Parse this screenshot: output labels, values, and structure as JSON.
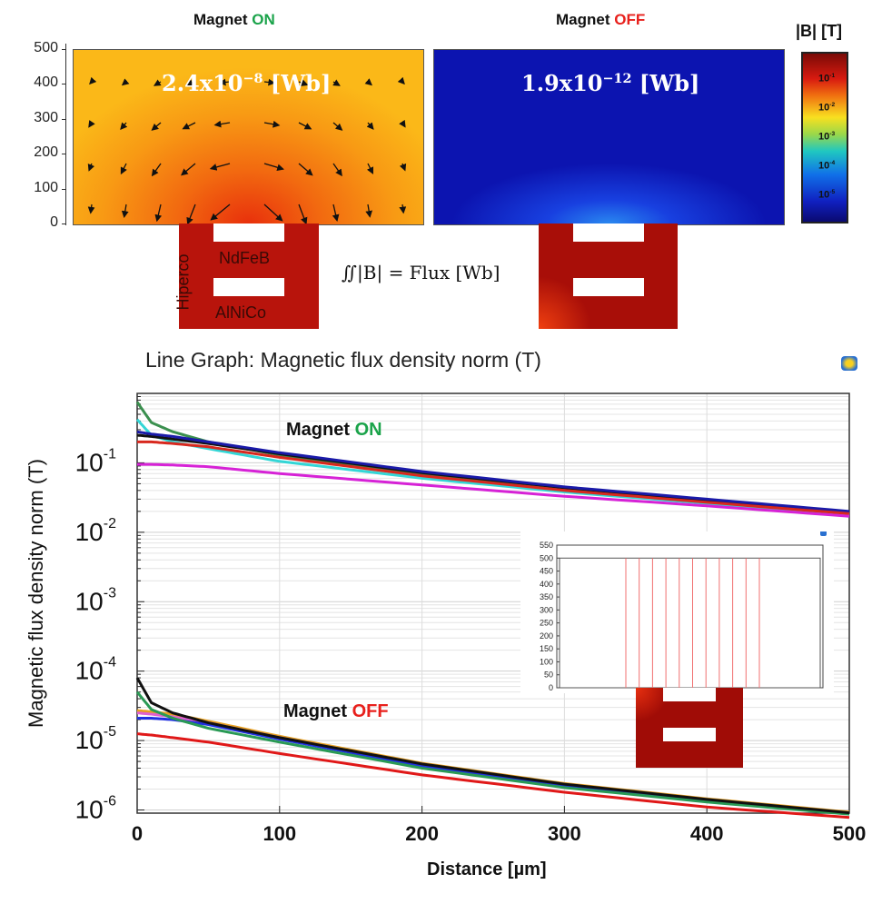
{
  "top_panels": {
    "on": {
      "title_prefix": "Magnet ",
      "title_state": "ON",
      "flux_value": "2.4x10",
      "flux_exp": "−8",
      "flux_unit": " [Wb]"
    },
    "off": {
      "title_prefix": "Magnet ",
      "title_state": "OFF",
      "flux_value": "1.9x10",
      "flux_exp": "−12",
      "flux_unit": " [Wb]"
    },
    "y_ticks": [
      "500",
      "400",
      "300",
      "200",
      "100",
      "0"
    ],
    "colorbar": {
      "title": "|B| [T]",
      "ticks": [
        "10-1",
        "10-2",
        "10-3",
        "10-4",
        "10-5"
      ],
      "tick_base": "10",
      "tick_exps": [
        "-1",
        "-2",
        "-3",
        "-4",
        "-5"
      ]
    },
    "device_labels": {
      "hiperco": "Hiperco",
      "ndfeb": "NdFeB",
      "alnico": "AlNiCo"
    },
    "formula": "∬|B| = Flux [Wb]",
    "colors": {
      "on": "#1aa34a",
      "off": "#e8201c"
    }
  },
  "chart_data": {
    "type": "line",
    "title": "Line Graph: Magnetic flux density norm (T)",
    "xlabel": "Distance [µm]",
    "ylabel": "Magnetic flux density norm (T)",
    "xlim": [
      0,
      500
    ],
    "ylim": [
      9e-07,
      1
    ],
    "yscale": "log",
    "grid": true,
    "x_ticks": [
      "0",
      "100",
      "200",
      "300",
      "400",
      "500"
    ],
    "y_tick_base": "10",
    "y_tick_exps": [
      "-1",
      "-2",
      "-3",
      "-4",
      "-5",
      "-6"
    ],
    "annotations": {
      "on_prefix": "Magnet ",
      "on_state": "ON",
      "off_prefix": "Magnet ",
      "off_state": "OFF"
    },
    "x": [
      0,
      10,
      25,
      50,
      100,
      200,
      300,
      400,
      500
    ],
    "series": [
      {
        "group": "on",
        "color": "#3a8f4e",
        "values": [
          0.75,
          0.38,
          0.28,
          0.2,
          0.13,
          0.07,
          0.042,
          0.028,
          0.019
        ]
      },
      {
        "group": "on",
        "color": "#33d6d6",
        "values": [
          0.42,
          0.25,
          0.2,
          0.16,
          0.105,
          0.06,
          0.038,
          0.026,
          0.018
        ]
      },
      {
        "group": "on",
        "color": "#111111",
        "values": [
          0.25,
          0.24,
          0.22,
          0.19,
          0.135,
          0.072,
          0.044,
          0.029,
          0.0195
        ]
      },
      {
        "group": "on",
        "color": "#1a1aa8",
        "values": [
          0.28,
          0.26,
          0.24,
          0.2,
          0.14,
          0.075,
          0.045,
          0.03,
          0.02
        ]
      },
      {
        "group": "on",
        "color": "#d8281e",
        "values": [
          0.2,
          0.2,
          0.19,
          0.17,
          0.12,
          0.065,
          0.04,
          0.027,
          0.0185
        ]
      },
      {
        "group": "on",
        "color": "#d622d6",
        "values": [
          0.095,
          0.095,
          0.093,
          0.088,
          0.07,
          0.048,
          0.033,
          0.024,
          0.017
        ]
      },
      {
        "group": "off",
        "color": "#e8a020",
        "values": [
          2.7e-05,
          2.6e-05,
          2.4e-05,
          1.9e-05,
          1.15e-05,
          4.7e-06,
          2.4e-06,
          1.45e-06,
          9.3e-07
        ]
      },
      {
        "group": "off",
        "color": "#e060d0",
        "values": [
          2.5e-05,
          2.4e-05,
          2.2e-05,
          1.8e-05,
          1.1e-05,
          4.5e-06,
          2.3e-06,
          1.4e-06,
          9e-07
        ]
      },
      {
        "group": "off",
        "color": "#2030e0",
        "values": [
          2.1e-05,
          2.1e-05,
          2e-05,
          1.7e-05,
          1.05e-05,
          4.3e-06,
          2.2e-06,
          1.35e-06,
          8.8e-07
        ]
      },
      {
        "group": "off",
        "color": "#2a9a55",
        "values": [
          5e-05,
          2.8e-05,
          2.1e-05,
          1.5e-05,
          9.5e-06,
          4e-06,
          2.1e-06,
          1.3e-06,
          8.7e-07
        ]
      },
      {
        "group": "off",
        "color": "#111111",
        "values": [
          8e-05,
          3.5e-05,
          2.5e-05,
          1.8e-05,
          1.1e-05,
          4.6e-06,
          2.35e-06,
          1.42e-06,
          9.1e-07
        ]
      },
      {
        "group": "off",
        "color": "#e01818",
        "values": [
          1.25e-05,
          1.2e-05,
          1.1e-05,
          9.5e-06,
          6.5e-06,
          3.2e-06,
          1.8e-06,
          1.1e-06,
          7.8e-07
        ]
      }
    ],
    "inset": {
      "y_ticks": [
        "550",
        "500",
        "450",
        "400",
        "350",
        "300",
        "250",
        "200",
        "150",
        "100",
        "50",
        "0"
      ],
      "cut_lines_count": 11,
      "line_color": "#f07070"
    }
  },
  "icons": {
    "graph_icon": "comsol-graph-icon"
  }
}
